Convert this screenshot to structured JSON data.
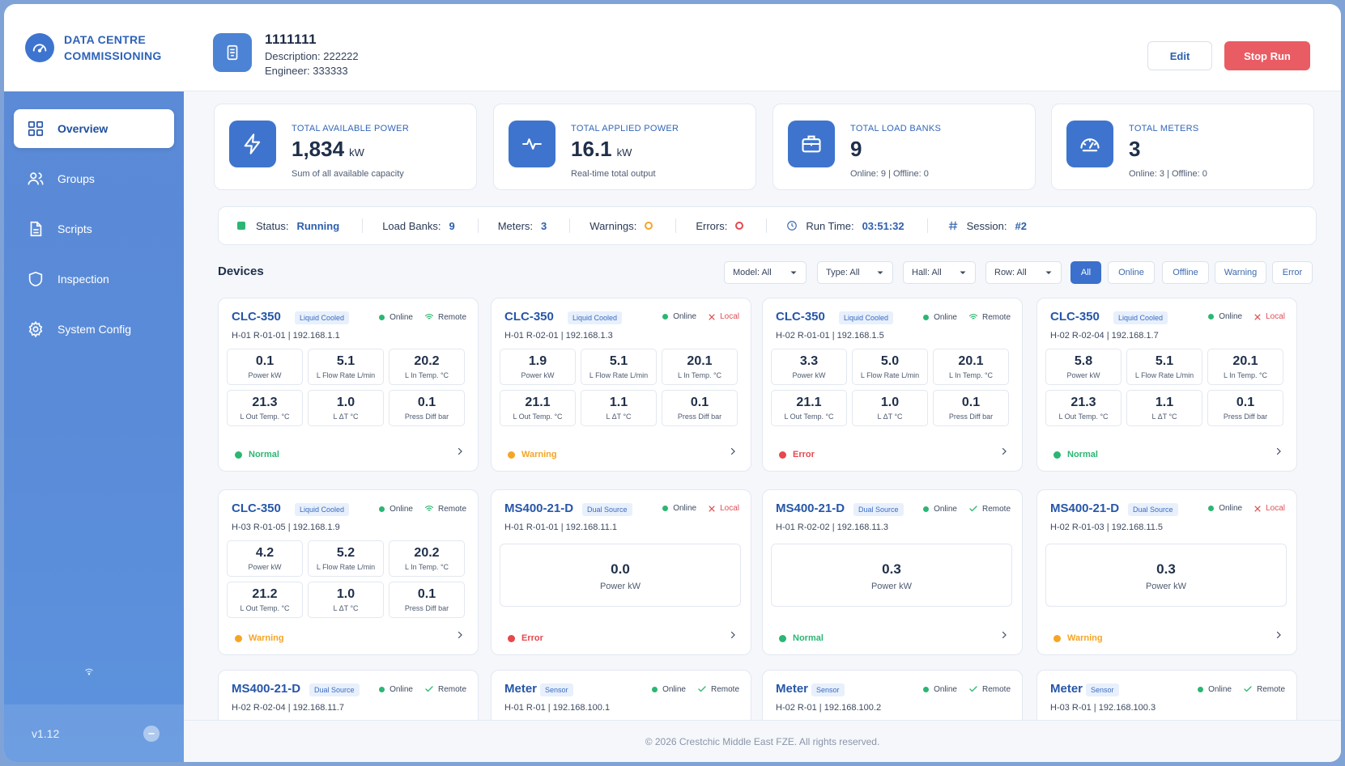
{
  "brand": {
    "line1": "DATA CENTRE",
    "line2": "COMMISSIONING"
  },
  "nav": [
    {
      "label": "Overview",
      "icon": "grid-icon"
    },
    {
      "label": "Groups",
      "icon": "users-icon"
    },
    {
      "label": "Scripts",
      "icon": "document-icon"
    },
    {
      "label": "Inspection",
      "icon": "shield-icon"
    },
    {
      "label": "System Config",
      "icon": "gear-icon"
    }
  ],
  "version": "v1.12",
  "header": {
    "title": "1111111",
    "description": "Description: 222222",
    "engineer": "Engineer: 333333",
    "edit_label": "Edit",
    "stop_label": "Stop Run"
  },
  "stats": [
    {
      "label": "TOTAL AVAILABLE POWER",
      "value": "1,834",
      "unit": "kW",
      "sub": "Sum of all available capacity",
      "icon": "bolt-icon"
    },
    {
      "label": "TOTAL APPLIED POWER",
      "value": "16.1",
      "unit": "kW",
      "sub": "Real-time total output",
      "icon": "pulse-icon"
    },
    {
      "label": "TOTAL LOAD BANKS",
      "value": "9",
      "unit": "",
      "sub": "Online: 9 | Offline: 0",
      "icon": "briefcase-icon"
    },
    {
      "label": "TOTAL METERS",
      "value": "3",
      "unit": "",
      "sub": "Online: 3 | Offline: 0",
      "icon": "gauge-icon"
    }
  ],
  "status_bar": {
    "status_label": "Status:",
    "status_value": "Running",
    "loadbanks_label": "Load Banks:",
    "loadbanks_value": "9",
    "meters_label": "Meters:",
    "meters_value": "3",
    "warnings_label": "Warnings:",
    "errors_label": "Errors:",
    "runtime_label": "Run Time:",
    "runtime_value": "03:51:32",
    "session_label": "Session:",
    "session_value": "#2"
  },
  "devices_title": "Devices",
  "filters": {
    "selects": [
      "Model: All",
      "Type: All",
      "Hall: All",
      "Row: All"
    ],
    "chips": [
      "All",
      "Online",
      "Offline",
      "Warning",
      "Error"
    ]
  },
  "metric_labels": [
    "Power kW",
    "L Flow Rate L/min",
    "L In Temp. °C",
    "L Out Temp. °C",
    "L ΔT °C",
    "Press Diff bar"
  ],
  "devices": [
    {
      "name": "CLC-350",
      "tag": "Liquid Cooled",
      "conn": "Online",
      "mode": "Remote",
      "loc": "H-01   R-01-01   |   192.168.1.1",
      "metrics": [
        "0.1",
        "5.1",
        "20.2",
        "21.3",
        "1.0",
        "0.1"
      ],
      "state": "Normal"
    },
    {
      "name": "CLC-350",
      "tag": "Liquid Cooled",
      "conn": "Online",
      "mode": "Local",
      "loc": "H-01   R-02-01   |   192.168.1.3",
      "metrics": [
        "1.9",
        "5.1",
        "20.1",
        "21.1",
        "1.1",
        "0.1"
      ],
      "state": "Warning"
    },
    {
      "name": "CLC-350",
      "tag": "Liquid Cooled",
      "conn": "Online",
      "mode": "Remote",
      "loc": "H-02   R-01-01   |   192.168.1.5",
      "metrics": [
        "3.3",
        "5.0",
        "20.1",
        "21.1",
        "1.0",
        "0.1"
      ],
      "state": "Error"
    },
    {
      "name": "CLC-350",
      "tag": "Liquid Cooled",
      "conn": "Online",
      "mode": "Local",
      "loc": "H-02   R-02-04   |   192.168.1.7",
      "metrics": [
        "5.8",
        "5.1",
        "20.1",
        "21.3",
        "1.1",
        "0.1"
      ],
      "state": "Normal"
    },
    {
      "name": "CLC-350",
      "tag": "Liquid Cooled",
      "conn": "Online",
      "mode": "Remote",
      "loc": "H-03   R-01-05   |   192.168.1.9",
      "metrics": [
        "4.2",
        "5.2",
        "20.2",
        "21.2",
        "1.0",
        "0.1"
      ],
      "state": "Warning"
    },
    {
      "name": "MS400-21-D",
      "tag": "Dual Source",
      "conn": "Online",
      "mode": "Local",
      "loc": "H-01   R-01-01   |   192.168.11.1",
      "power": "0.0",
      "power_label": "Power kW",
      "state": "Error"
    },
    {
      "name": "MS400-21-D",
      "tag": "Dual Source",
      "conn": "Online",
      "mode": "Remote",
      "loc": "H-01   R-02-02   |   192.168.11.3",
      "power": "0.3",
      "power_label": "Power kW",
      "state": "Normal"
    },
    {
      "name": "MS400-21-D",
      "tag": "Dual Source",
      "conn": "Online",
      "mode": "Local",
      "loc": "H-02   R-01-03   |   192.168.11.5",
      "power": "0.3",
      "power_label": "Power kW",
      "state": "Warning"
    },
    {
      "name": "MS400-21-D",
      "tag": "Dual Source",
      "conn": "Online",
      "mode": "Remote",
      "loc": "H-02   R-02-04   |   192.168.11.7"
    },
    {
      "name": "Meter",
      "tag": "Sensor",
      "conn": "Online",
      "mode": "Remote",
      "loc": "H-01   R-01   |   192.168.100.1"
    },
    {
      "name": "Meter",
      "tag": "Sensor",
      "conn": "Online",
      "mode": "Remote",
      "loc": "H-02   R-01   |   192.168.100.2"
    },
    {
      "name": "Meter",
      "tag": "Sensor",
      "conn": "Online",
      "mode": "Remote",
      "loc": "H-03   R-01   |   192.168.100.3"
    }
  ],
  "colors": {
    "normal": "#2bb673",
    "warning": "#f5a524",
    "error": "#e5484d",
    "accent": "#3b70cc"
  },
  "footer": "© 2026 Crestchic Middle East FZE. All rights reserved."
}
